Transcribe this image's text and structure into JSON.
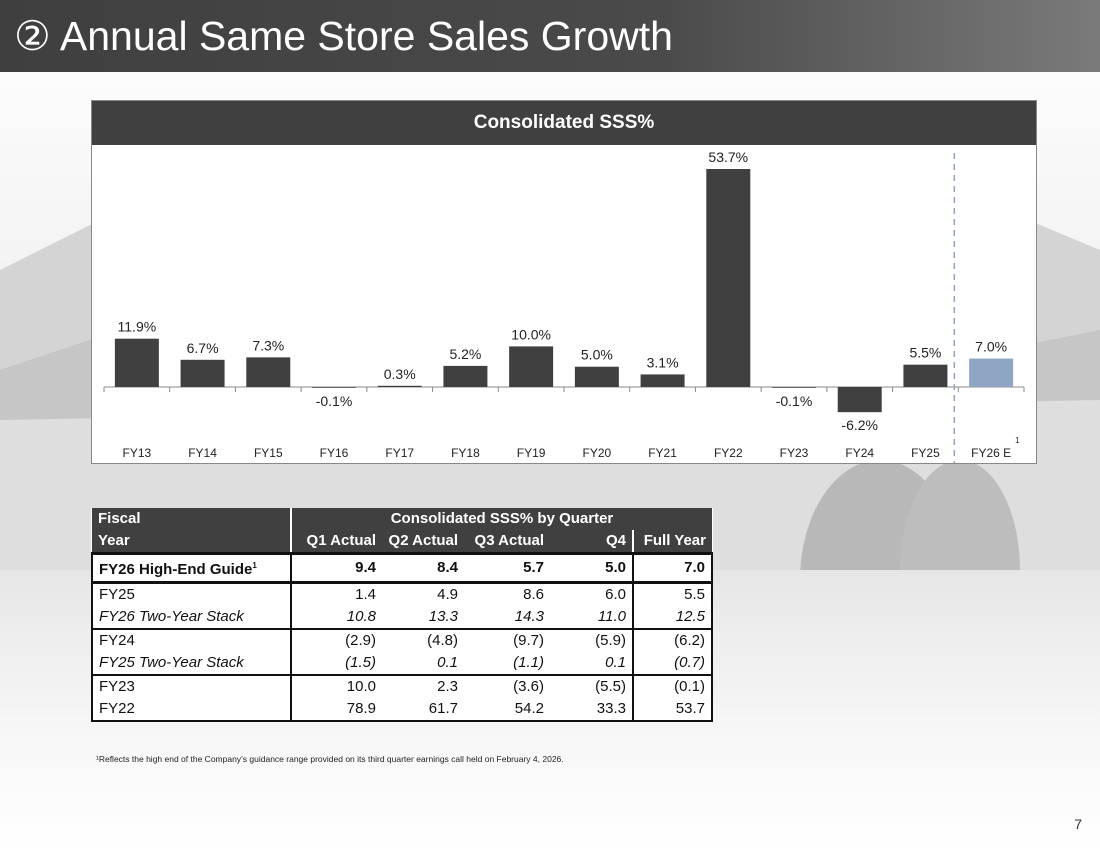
{
  "slide": {
    "title": "② Annual Same Store Sales Growth",
    "page_number": "7",
    "footnote": "¹Reflects the high end of the Company’s guidance range provided on its third quarter earnings call held on February 4, 2026."
  },
  "colors": {
    "bar": "#404040",
    "estimate_bar": "#8ea6c3",
    "header": "#404040",
    "divider": "#8ea6c3"
  },
  "chart_data": {
    "type": "bar",
    "title": "Consolidated SSS%",
    "categories": [
      "FY13",
      "FY14",
      "FY15",
      "FY16",
      "FY17",
      "FY18",
      "FY19",
      "FY20",
      "FY21",
      "FY22",
      "FY23",
      "FY24",
      "FY25",
      "FY26 E"
    ],
    "values": [
      11.9,
      6.7,
      7.3,
      -0.1,
      0.3,
      5.2,
      10.0,
      5.0,
      3.1,
      53.7,
      -0.1,
      -6.2,
      5.5,
      7.0
    ],
    "labels": [
      "11.9%",
      "6.7%",
      "7.3%",
      "-0.1%",
      "0.3%",
      "5.2%",
      "10.0%",
      "5.0%",
      "3.1%",
      "53.7%",
      "-0.1%",
      "-6.2%",
      "5.5%",
      "7.0%"
    ],
    "estimate_index": 13,
    "estimate_footnote_marker": "1",
    "ylim": [
      -10,
      55
    ],
    "xlabel": "",
    "ylabel": "",
    "grid": false
  },
  "table": {
    "header_left_top": "Fiscal",
    "header_left_bottom": "Year",
    "group_header": "Consolidated SSS% by Quarter",
    "columns": [
      "Q1 Actual",
      "Q2 Actual",
      "Q3 Actual",
      "Q4",
      "Full Year"
    ],
    "guide_row": {
      "label": "FY26 High-End Guide",
      "marker": "1",
      "values": [
        "9.4",
        "8.4",
        "5.7",
        "5.0",
        "7.0"
      ]
    },
    "rows": [
      {
        "label": "FY25",
        "values": [
          "1.4",
          "4.9",
          "8.6",
          "6.0",
          "5.5"
        ]
      },
      {
        "label": "FY26 Two-Year Stack",
        "values": [
          "10.8",
          "13.3",
          "14.3",
          "11.0",
          "12.5"
        ]
      },
      {
        "label": "FY24",
        "values": [
          "(2.9)",
          "(4.8)",
          "(9.7)",
          "(5.9)",
          "(6.2)"
        ]
      },
      {
        "label": "FY25 Two-Year Stack",
        "values": [
          "(1.5)",
          "0.1",
          "(1.1)",
          "0.1",
          "(0.7)"
        ]
      },
      {
        "label": "FY23",
        "values": [
          "10.0",
          "2.3",
          "(3.6)",
          "(5.5)",
          "(0.1)"
        ]
      },
      {
        "label": "FY22",
        "values": [
          "78.9",
          "61.7",
          "54.2",
          "33.3",
          "53.7"
        ]
      }
    ]
  }
}
